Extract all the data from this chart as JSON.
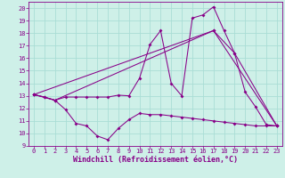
{
  "xlabel": "Windchill (Refroidissement éolien,°C)",
  "background_color": "#cef0e8",
  "grid_color": "#aaddd5",
  "line_color": "#880088",
  "xlim": [
    -0.5,
    23.5
  ],
  "ylim": [
    9,
    20.5
  ],
  "xticks": [
    0,
    1,
    2,
    3,
    4,
    5,
    6,
    7,
    8,
    9,
    10,
    11,
    12,
    13,
    14,
    15,
    16,
    17,
    18,
    19,
    20,
    21,
    22,
    23
  ],
  "yticks": [
    9,
    10,
    11,
    12,
    13,
    14,
    15,
    16,
    17,
    18,
    19,
    20
  ],
  "line1_x": [
    0,
    1,
    2,
    3,
    4,
    5,
    6,
    7,
    8,
    9,
    10,
    11,
    12,
    13,
    14,
    15,
    16,
    17,
    18,
    19,
    20,
    21,
    22,
    23
  ],
  "line1_y": [
    13.1,
    12.9,
    12.65,
    12.9,
    12.9,
    12.9,
    12.9,
    12.9,
    13.05,
    13.0,
    14.4,
    17.1,
    18.2,
    14.0,
    13.0,
    19.2,
    19.45,
    20.1,
    18.2,
    16.4,
    13.3,
    12.1,
    10.7,
    10.6
  ],
  "line2_x": [
    0,
    1,
    2,
    3,
    4,
    5,
    6,
    7,
    8,
    9,
    10,
    11,
    12,
    13,
    14,
    15,
    16,
    17,
    18,
    19,
    20,
    21,
    22,
    23
  ],
  "line2_y": [
    13.1,
    12.9,
    12.65,
    11.9,
    10.8,
    10.6,
    9.8,
    9.5,
    10.4,
    11.1,
    11.6,
    11.5,
    11.5,
    11.4,
    11.3,
    11.2,
    11.1,
    11.0,
    10.9,
    10.8,
    10.7,
    10.6,
    10.6,
    10.6
  ],
  "line3_x": [
    0,
    2,
    17,
    23
  ],
  "line3_y": [
    13.1,
    12.65,
    18.2,
    10.6
  ],
  "line4_x": [
    0,
    17,
    19,
    23
  ],
  "line4_y": [
    13.1,
    18.2,
    16.4,
    10.6
  ],
  "tick_fontsize": 5.0,
  "xlabel_fontsize": 6.0
}
